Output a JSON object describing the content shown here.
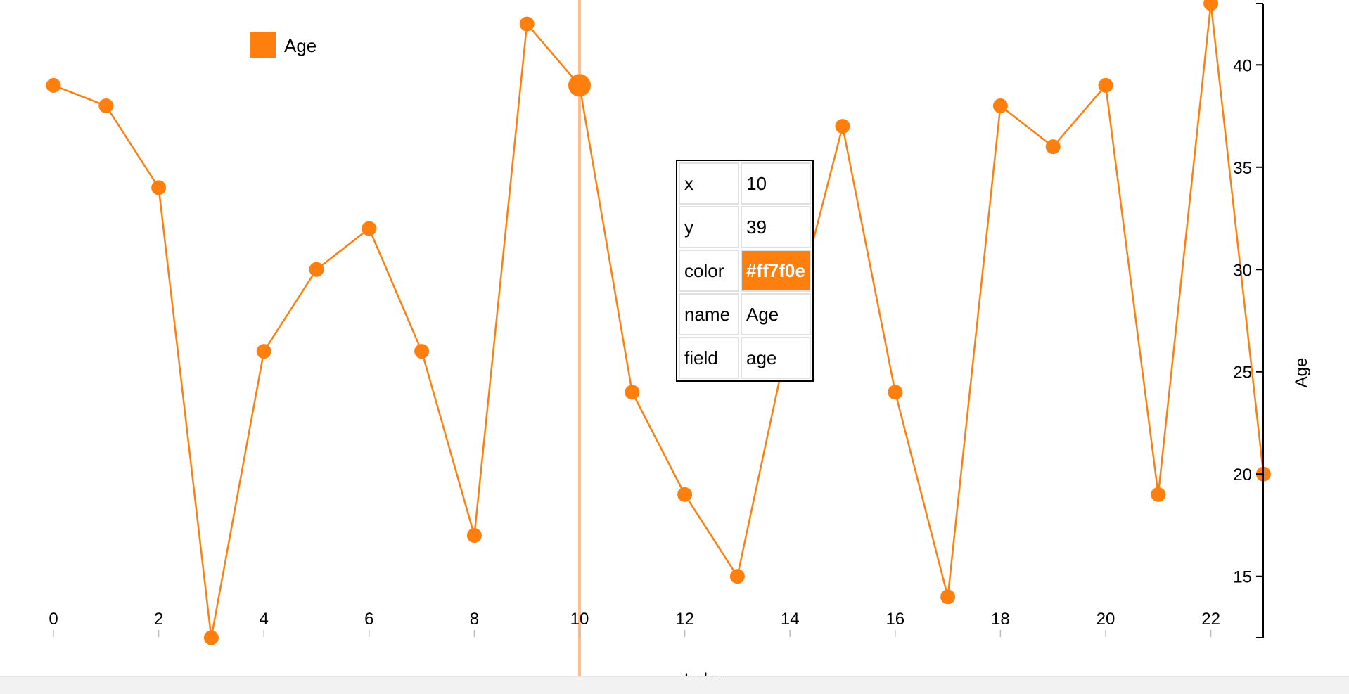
{
  "chart_data": {
    "type": "line",
    "xlabel": "Index",
    "ylabel": "Age",
    "xlim": [
      0,
      23
    ],
    "ylim": [
      12,
      43
    ],
    "x_ticks": [
      0,
      2,
      4,
      6,
      8,
      10,
      12,
      14,
      16,
      18,
      20,
      22
    ],
    "y_ticks": [
      15,
      20,
      25,
      30,
      35,
      40
    ],
    "legend_position": "top-left",
    "grid": false,
    "series": [
      {
        "name": "Age",
        "color": "#ff7f0e",
        "x": [
          0,
          1,
          2,
          3,
          4,
          5,
          6,
          7,
          8,
          9,
          10,
          11,
          12,
          13,
          14,
          15,
          16,
          17,
          18,
          19,
          20,
          21,
          22,
          23
        ],
        "y": [
          39,
          38,
          34,
          12,
          26,
          30,
          32,
          26,
          17,
          42,
          39,
          24,
          19,
          15,
          27,
          37,
          24,
          14,
          38,
          36,
          39,
          19,
          43,
          20
        ]
      }
    ],
    "highlight": {
      "x": 10,
      "y": 39
    }
  },
  "tooltip": {
    "rows": [
      {
        "key": "x",
        "value": "10"
      },
      {
        "key": "y",
        "value": "39"
      },
      {
        "key": "color",
        "value": "#ff7f0e"
      },
      {
        "key": "name",
        "value": "Age"
      },
      {
        "key": "field",
        "value": "age"
      }
    ]
  }
}
